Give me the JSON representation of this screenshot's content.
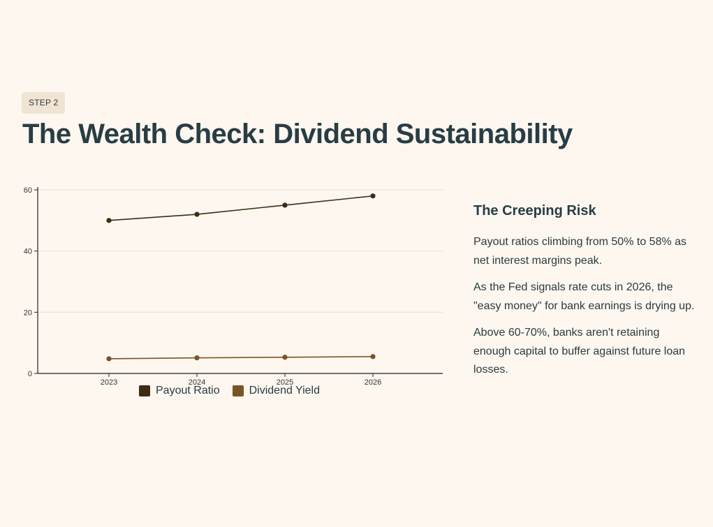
{
  "header": {
    "step": "STEP 2",
    "title": "The Wealth Check: Dividend Sustainability"
  },
  "colors": {
    "background": "#fdf7f0",
    "payout": "#3d2b14",
    "yield": "#7a5426",
    "grid": "#ecdcdc",
    "axis": "#222222"
  },
  "chart_data": {
    "type": "line",
    "x": [
      "2023",
      "2024",
      "2025",
      "2026"
    ],
    "series": [
      {
        "name": "Payout Ratio",
        "values": [
          50,
          52,
          55,
          58
        ],
        "color": "#3d2b14"
      },
      {
        "name": "Dividend Yield",
        "values": [
          4.8,
          5.1,
          5.3,
          5.5
        ],
        "color": "#7a5426"
      }
    ],
    "yticks": [
      0,
      20,
      40,
      60
    ],
    "ylim": [
      0,
      60
    ],
    "grid": true,
    "legend": "bottom"
  },
  "side": {
    "heading": "The Creeping Risk",
    "paragraphs": [
      "Payout ratios climbing from 50% to 58% as net interest margins peak.",
      "As the Fed signals rate cuts in 2026, the \"easy money\" for bank earnings is drying up.",
      "Above 60-70%, banks aren't retaining enough capital to buffer against future loan losses."
    ]
  }
}
